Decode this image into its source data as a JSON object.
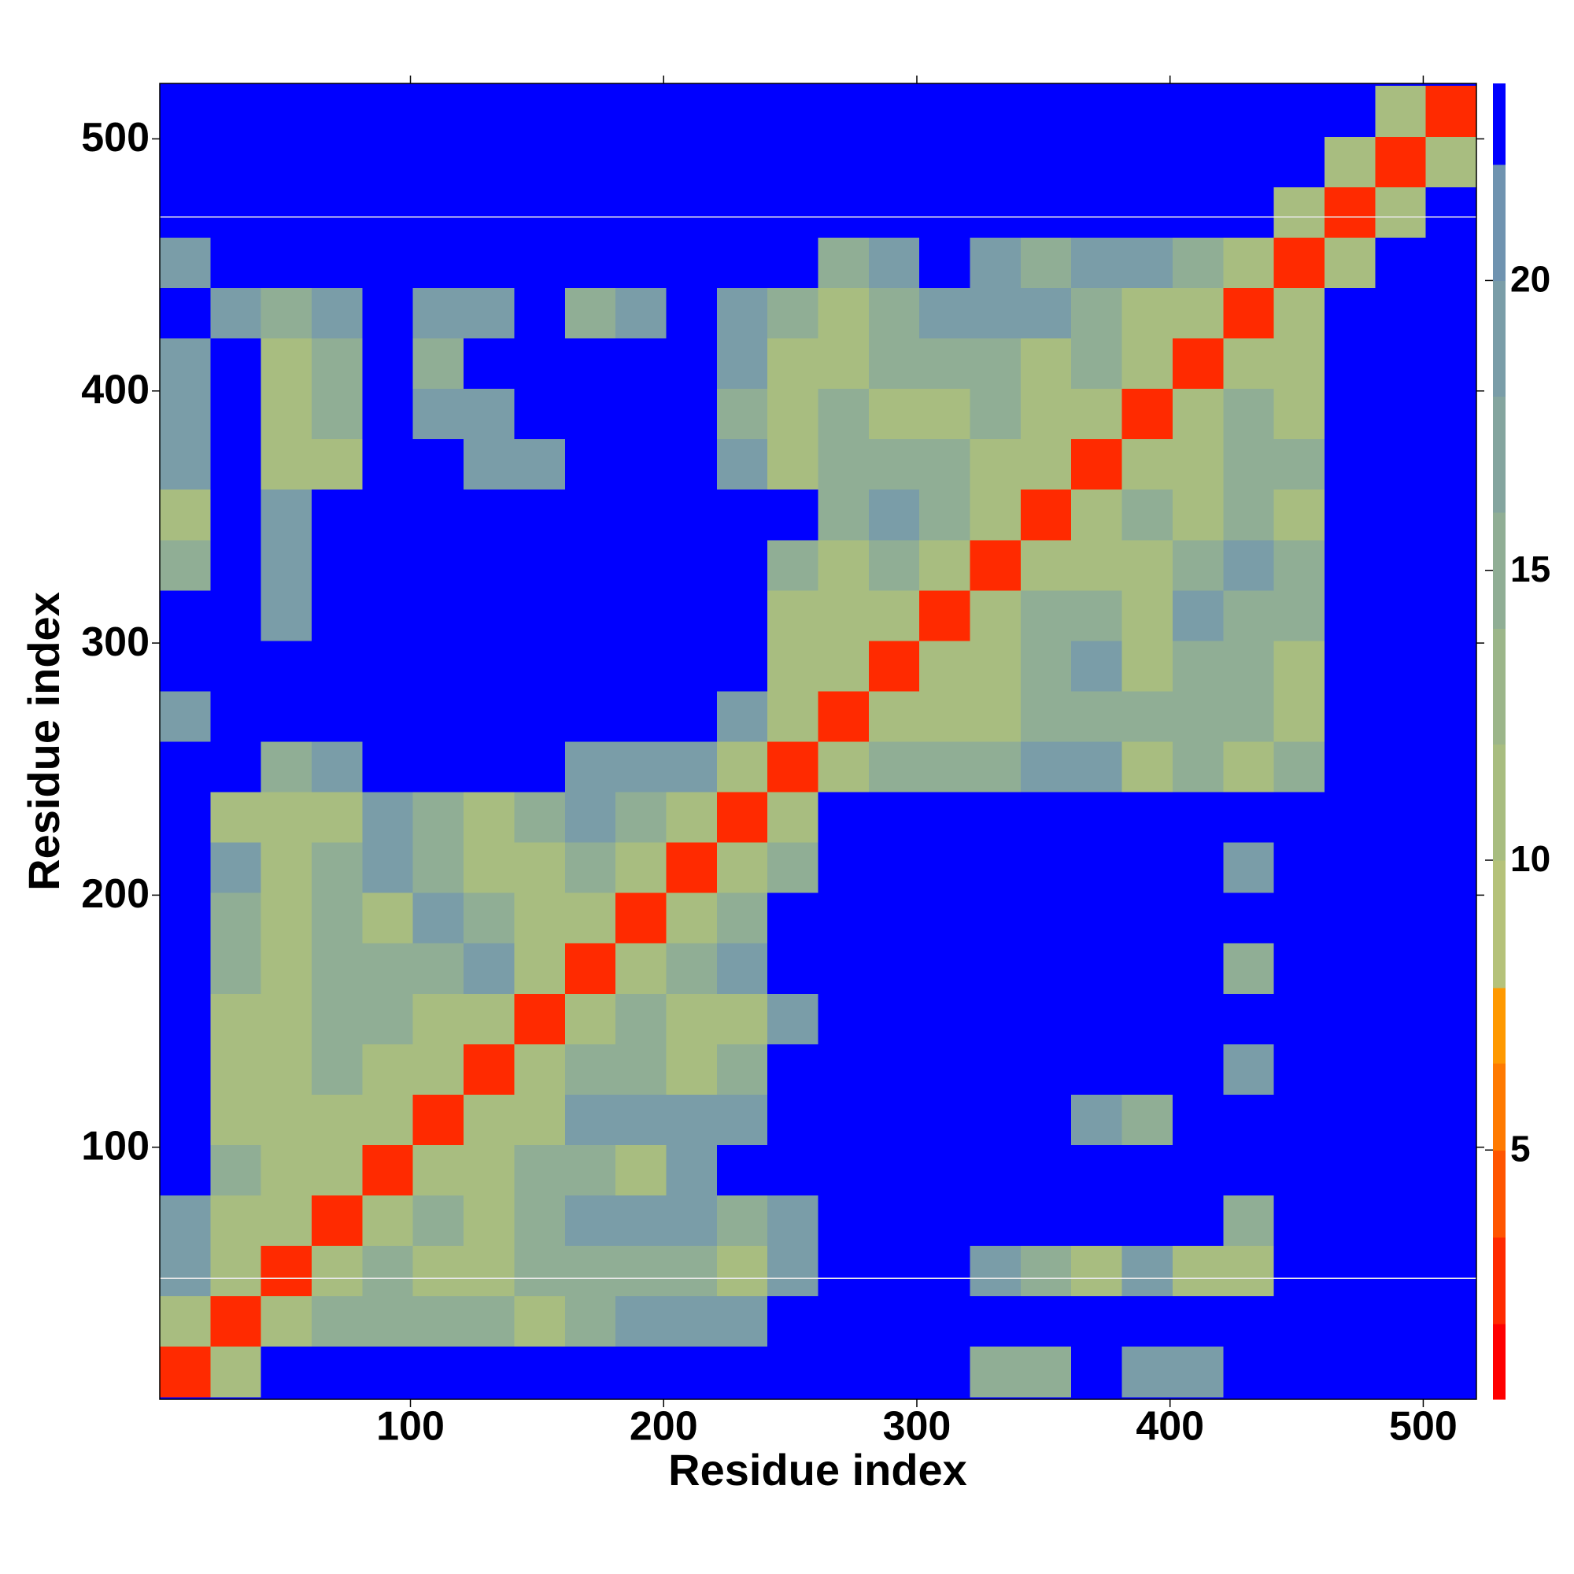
{
  "chart_data": {
    "type": "heatmap",
    "xlabel": "Residue index",
    "ylabel": "Residue index",
    "xlim": [
      1,
      521
    ],
    "ylim": [
      0,
      522
    ],
    "xticks": [
      100,
      200,
      300,
      400,
      500
    ],
    "yticks": [
      100,
      200,
      300,
      400,
      500
    ],
    "x": [
      1,
      21,
      41,
      61,
      81,
      101,
      121,
      141,
      161,
      181,
      201,
      221,
      241,
      261,
      281,
      301,
      321,
      341,
      361,
      381,
      401,
      421,
      441,
      461,
      481,
      501,
      521
    ],
    "y": [
      1,
      21,
      41,
      61,
      81,
      101,
      121,
      141,
      161,
      181,
      201,
      221,
      241,
      261,
      281,
      301,
      321,
      341,
      361,
      381,
      401,
      421,
      441,
      461,
      481,
      501,
      521
    ],
    "values": [
      [
        3,
        10,
        23,
        23,
        23,
        23,
        23,
        23,
        23,
        23,
        23,
        23,
        23,
        23,
        23,
        23,
        15,
        15,
        23,
        19,
        19,
        23,
        23,
        23,
        23,
        23
      ],
      [
        10,
        3,
        10,
        15,
        15,
        15,
        15,
        10,
        15,
        19,
        19,
        19,
        23,
        23,
        23,
        23,
        23,
        23,
        23,
        23,
        23,
        23,
        23,
        23,
        23,
        23
      ],
      [
        19,
        10,
        3,
        10,
        15,
        10,
        10,
        15,
        15,
        15,
        15,
        10,
        19,
        23,
        23,
        23,
        19,
        15,
        10,
        19,
        10,
        10,
        23,
        23,
        23,
        23
      ],
      [
        19,
        10,
        10,
        3,
        10,
        15,
        10,
        15,
        19,
        19,
        19,
        15,
        19,
        23,
        23,
        23,
        23,
        23,
        23,
        23,
        23,
        15,
        23,
        23,
        23,
        23
      ],
      [
        23,
        15,
        10,
        10,
        3,
        10,
        10,
        15,
        15,
        10,
        19,
        23,
        23,
        23,
        23,
        23,
        23,
        23,
        23,
        23,
        23,
        23,
        23,
        23,
        23,
        23
      ],
      [
        23,
        10,
        10,
        10,
        10,
        3,
        10,
        10,
        19,
        19,
        19,
        19,
        23,
        23,
        23,
        23,
        23,
        23,
        19,
        15,
        23,
        23,
        23,
        23,
        23,
        23
      ],
      [
        23,
        10,
        10,
        15,
        10,
        10,
        3,
        10,
        15,
        15,
        10,
        15,
        23,
        23,
        23,
        23,
        23,
        23,
        23,
        23,
        23,
        19,
        23,
        23,
        23,
        23
      ],
      [
        23,
        10,
        10,
        15,
        15,
        10,
        10,
        3,
        10,
        15,
        10,
        10,
        19,
        23,
        23,
        23,
        23,
        23,
        23,
        23,
        23,
        23,
        23,
        23,
        23,
        23
      ],
      [
        23,
        15,
        10,
        15,
        15,
        15,
        19,
        10,
        3,
        10,
        15,
        19,
        23,
        23,
        23,
        23,
        23,
        23,
        23,
        23,
        23,
        15,
        23,
        23,
        23,
        23
      ],
      [
        23,
        15,
        10,
        15,
        10,
        19,
        15,
        10,
        10,
        3,
        10,
        15,
        23,
        23,
        23,
        23,
        23,
        23,
        23,
        23,
        23,
        23,
        23,
        23,
        23,
        23
      ],
      [
        23,
        19,
        10,
        15,
        19,
        15,
        10,
        10,
        15,
        10,
        3,
        10,
        15,
        23,
        23,
        23,
        23,
        23,
        23,
        23,
        23,
        19,
        23,
        23,
        23,
        23
      ],
      [
        23,
        10,
        10,
        10,
        19,
        15,
        10,
        15,
        19,
        15,
        10,
        3,
        10,
        23,
        23,
        23,
        23,
        23,
        23,
        23,
        23,
        23,
        23,
        23,
        23,
        23
      ],
      [
        23,
        23,
        15,
        19,
        23,
        23,
        23,
        23,
        19,
        19,
        19,
        10,
        3,
        10,
        15,
        15,
        15,
        19,
        19,
        10,
        15,
        10,
        15,
        23,
        23,
        23
      ],
      [
        19,
        23,
        23,
        23,
        23,
        23,
        23,
        23,
        23,
        23,
        23,
        19,
        10,
        3,
        10,
        10,
        10,
        15,
        15,
        15,
        15,
        15,
        10,
        23,
        23,
        23
      ],
      [
        23,
        23,
        23,
        23,
        23,
        23,
        23,
        23,
        23,
        23,
        23,
        23,
        10,
        10,
        3,
        10,
        10,
        15,
        19,
        10,
        15,
        15,
        10,
        23,
        23,
        23
      ],
      [
        23,
        23,
        19,
        23,
        23,
        23,
        23,
        23,
        23,
        23,
        23,
        23,
        10,
        10,
        10,
        3,
        10,
        15,
        15,
        10,
        19,
        15,
        15,
        23,
        23,
        23
      ],
      [
        15,
        23,
        19,
        23,
        23,
        23,
        23,
        23,
        23,
        23,
        23,
        23,
        15,
        10,
        15,
        10,
        3,
        10,
        10,
        10,
        15,
        19,
        15,
        23,
        23,
        23
      ],
      [
        10,
        23,
        19,
        23,
        23,
        23,
        23,
        23,
        23,
        23,
        23,
        23,
        23,
        15,
        19,
        15,
        10,
        3,
        10,
        15,
        10,
        15,
        10,
        23,
        23,
        23
      ],
      [
        19,
        23,
        10,
        10,
        23,
        23,
        19,
        19,
        23,
        23,
        23,
        19,
        10,
        15,
        15,
        15,
        10,
        10,
        3,
        10,
        10,
        15,
        15,
        23,
        23,
        23
      ],
      [
        19,
        23,
        10,
        15,
        23,
        19,
        19,
        23,
        23,
        23,
        23,
        15,
        10,
        15,
        10,
        10,
        15,
        10,
        10,
        3,
        10,
        15,
        10,
        23,
        23,
        23
      ],
      [
        19,
        23,
        10,
        15,
        23,
        15,
        23,
        23,
        23,
        23,
        23,
        19,
        10,
        10,
        15,
        15,
        15,
        10,
        15,
        10,
        3,
        10,
        10,
        23,
        23,
        23
      ],
      [
        23,
        19,
        15,
        19,
        23,
        19,
        19,
        23,
        15,
        19,
        23,
        19,
        15,
        10,
        15,
        19,
        19,
        19,
        15,
        10,
        10,
        3,
        10,
        23,
        23,
        23
      ],
      [
        19,
        23,
        23,
        23,
        23,
        23,
        23,
        23,
        23,
        23,
        23,
        23,
        23,
        15,
        19,
        23,
        19,
        15,
        19,
        19,
        15,
        10,
        3,
        10,
        23,
        23
      ],
      [
        23,
        23,
        23,
        23,
        23,
        23,
        23,
        23,
        23,
        23,
        23,
        23,
        23,
        23,
        23,
        23,
        23,
        23,
        23,
        23,
        23,
        23,
        10,
        3,
        10,
        23
      ],
      [
        23,
        23,
        23,
        23,
        23,
        23,
        23,
        23,
        23,
        23,
        23,
        23,
        23,
        23,
        23,
        23,
        23,
        23,
        23,
        23,
        23,
        23,
        23,
        10,
        3,
        10
      ],
      [
        23,
        23,
        23,
        23,
        23,
        23,
        23,
        23,
        23,
        23,
        23,
        23,
        23,
        23,
        23,
        23,
        23,
        23,
        23,
        23,
        23,
        23,
        23,
        23,
        10,
        3
      ]
    ],
    "hlines": [
      469,
      48
    ],
    "hline_color": "#e8e8e8",
    "background": "#0000ff",
    "clim": [
      0.7,
      23.4
    ],
    "cticks": [
      5,
      10,
      15,
      20
    ],
    "levels": [
      0.7,
      2,
      3.5,
      5,
      6.5,
      7.8,
      10,
      12,
      14,
      16,
      18,
      20,
      22,
      23.4
    ],
    "level_colors": [
      "#ff0000",
      "#ff2a00",
      "#ff5500",
      "#ff7a00",
      "#ff9900",
      "#b5c27a",
      "#a8bd80",
      "#9cb68a",
      "#90ae95",
      "#84a59f",
      "#7a9da8",
      "#6f93b0",
      "#0000ff"
    ]
  }
}
